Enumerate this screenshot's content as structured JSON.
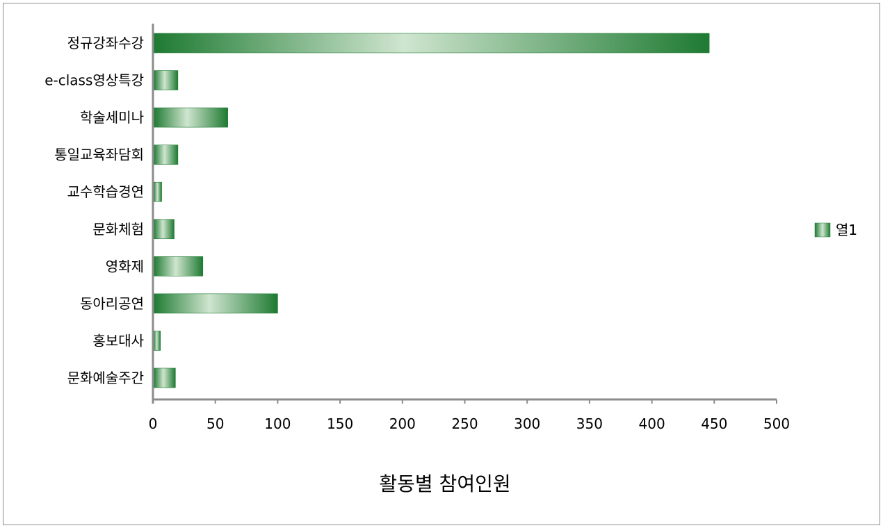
{
  "chart_data": {
    "type": "bar",
    "orientation": "horizontal",
    "categories": [
      "정규강좌수강",
      "e-class영상특강",
      "학술세미나",
      "통일교육좌담회",
      "교수학습경연",
      "문화체험",
      "영화제",
      "동아리공연",
      "홍보대사",
      "문화예술주간"
    ],
    "series": [
      {
        "name": "열1",
        "values": [
          446,
          20,
          60,
          20,
          7,
          17,
          40,
          100,
          6,
          18
        ]
      }
    ],
    "xlabel": "활동별 참여인원",
    "ylabel": "",
    "title": "",
    "xlim": [
      0,
      500
    ],
    "xticks": [
      0,
      50,
      100,
      150,
      200,
      250,
      300,
      350,
      400,
      450,
      500
    ],
    "grid": false,
    "legend": {
      "position": "right",
      "entries": [
        "열1"
      ]
    },
    "colors": {
      "bar_dark": "#1e7a32",
      "bar_light": "#cfe5cf",
      "axis": "#8c8c8c"
    }
  }
}
